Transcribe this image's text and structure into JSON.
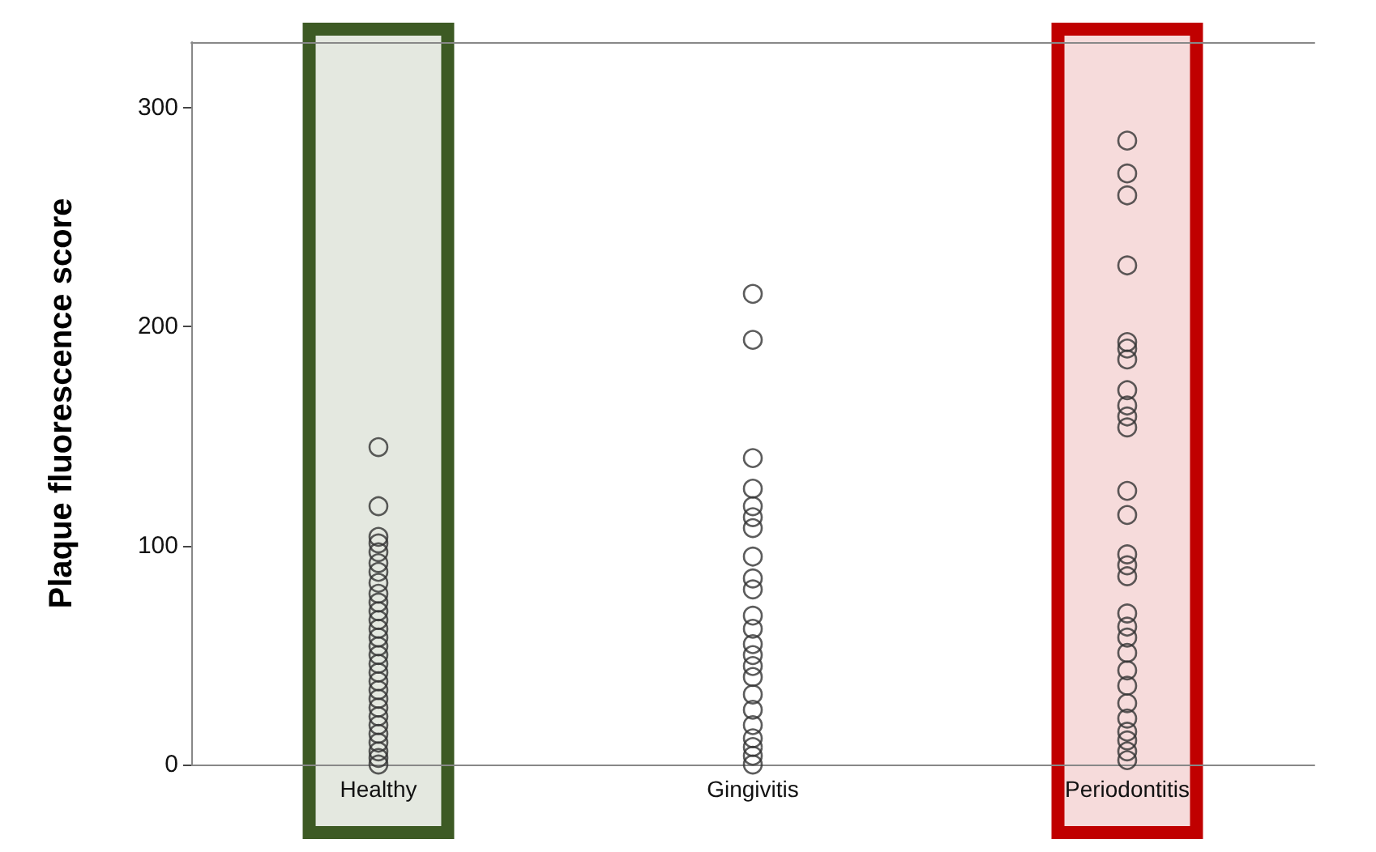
{
  "chart_data": {
    "type": "scatter",
    "ylabel": "Plaque fluorescence score",
    "categories": [
      "Healthy",
      "Gingivitis",
      "Periodontitis"
    ],
    "series": [
      {
        "color": "#333333",
        "x": [
          "Healthy",
          "Healthy",
          "Healthy",
          "Healthy",
          "Healthy",
          "Healthy",
          "Healthy",
          "Healthy",
          "Healthy",
          "Healthy",
          "Healthy",
          "Healthy",
          "Healthy",
          "Healthy",
          "Healthy",
          "Healthy",
          "Healthy",
          "Healthy",
          "Healthy",
          "Healthy",
          "Healthy",
          "Healthy",
          "Healthy",
          "Healthy",
          "Healthy",
          "Healthy",
          "Healthy",
          "Healthy",
          "Healthy",
          "Gingivitis",
          "Gingivitis",
          "Gingivitis",
          "Gingivitis",
          "Gingivitis",
          "Gingivitis",
          "Gingivitis",
          "Gingivitis",
          "Gingivitis",
          "Gingivitis",
          "Gingivitis",
          "Gingivitis",
          "Gingivitis",
          "Gingivitis",
          "Gingivitis",
          "Gingivitis",
          "Gingivitis",
          "Gingivitis",
          "Gingivitis",
          "Gingivitis",
          "Gingivitis",
          "Gingivitis",
          "Gingivitis",
          "Periodontitis",
          "Periodontitis",
          "Periodontitis",
          "Periodontitis",
          "Periodontitis",
          "Periodontitis",
          "Periodontitis",
          "Periodontitis",
          "Periodontitis",
          "Periodontitis",
          "Periodontitis",
          "Periodontitis",
          "Periodontitis",
          "Periodontitis",
          "Periodontitis",
          "Periodontitis",
          "Periodontitis",
          "Periodontitis",
          "Periodontitis",
          "Periodontitis",
          "Periodontitis",
          "Periodontitis",
          "Periodontitis",
          "Periodontitis",
          "Periodontitis",
          "Periodontitis",
          "Periodontitis",
          "Periodontitis"
        ],
        "values": [
          145,
          118,
          104,
          101,
          97,
          92,
          88,
          83,
          78,
          74,
          70,
          66,
          62,
          58,
          54,
          50,
          46,
          42,
          38,
          34,
          30,
          26,
          22,
          18,
          14,
          10,
          6,
          3,
          0,
          215,
          194,
          140,
          126,
          118,
          113,
          108,
          95,
          85,
          80,
          68,
          62,
          55,
          50,
          45,
          40,
          32,
          25,
          18,
          12,
          8,
          4,
          0,
          285,
          270,
          260,
          228,
          193,
          190,
          185,
          171,
          164,
          159,
          154,
          125,
          114,
          96,
          91,
          86,
          69,
          63,
          58,
          51,
          43,
          36,
          28,
          21,
          15,
          11,
          6,
          2
        ]
      }
    ],
    "ylim": [
      0,
      330
    ],
    "yticks": [
      0,
      100,
      200,
      300
    ],
    "grid": false,
    "marker": "circle",
    "bands": [
      {
        "axis": "x",
        "from": "Healthy",
        "to": "Healthy",
        "color": "#3d5a24"
      },
      {
        "axis": "x",
        "from": "Periodontitis",
        "to": "Periodontitis",
        "color": "#c00000"
      }
    ]
  }
}
